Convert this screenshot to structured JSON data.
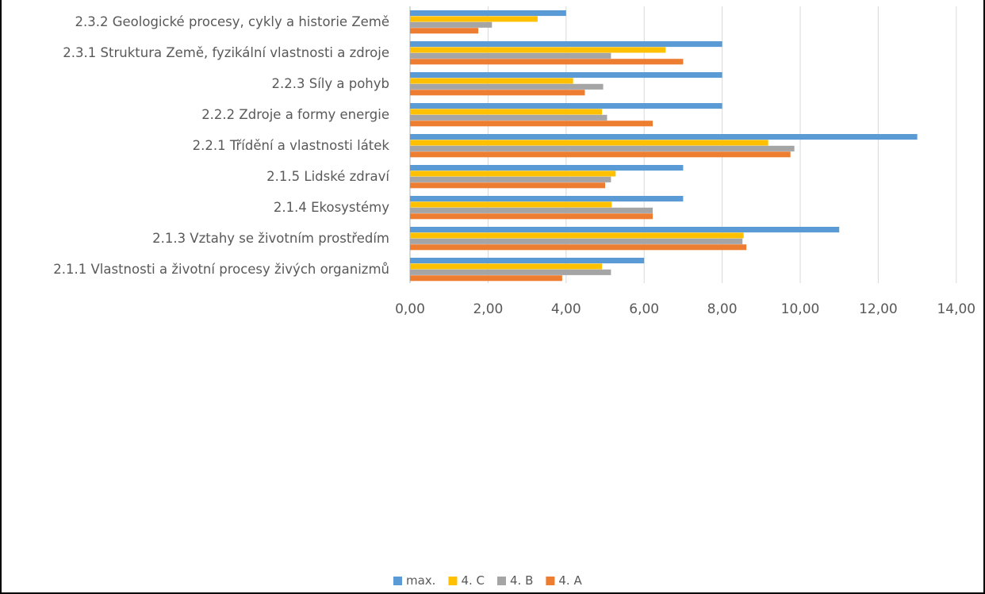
{
  "chart_data": {
    "type": "bar",
    "orientation": "horizontal",
    "categories": [
      "2.1.1 Vlastnosti a životní procesy živých organizmů",
      "2.1.3 Vztahy se životním prostředím",
      "2.1.4 Ekosystémy",
      "2.1.5 Lidské zdraví",
      "2.2.1 Třídění a vlastnosti látek",
      "2.2.2 Zdroje a formy energie",
      "2.2.3 Síly a pohyb",
      "2.3.1 Struktura Země, fyzikální vlastnosti a zdroje",
      "2.3.2 Geologické procesy, cykly a historie Země"
    ],
    "series": [
      {
        "name": "max.",
        "color": "#5B9BD5",
        "values": [
          6,
          11,
          7,
          7,
          13,
          8,
          8,
          8,
          4
        ]
      },
      {
        "name": "4. C",
        "color": "#FFC000",
        "values": [
          4.92,
          8.55,
          5.17,
          5.27,
          9.18,
          4.92,
          4.18,
          6.55,
          3.27
        ]
      },
      {
        "name": "4. B",
        "color": "#A5A5A5",
        "values": [
          5.15,
          8.52,
          6.22,
          5.15,
          9.85,
          5.05,
          4.95,
          5.15,
          2.1
        ]
      },
      {
        "name": "4. A",
        "color": "#ED7D31",
        "values": [
          3.9,
          8.62,
          6.22,
          5.0,
          9.75,
          6.22,
          4.48,
          7.0,
          1.75
        ]
      }
    ],
    "title": "",
    "xlabel": "",
    "ylabel": "",
    "xlim": [
      0,
      14
    ],
    "xticks": [
      0,
      2,
      4,
      6,
      8,
      10,
      12,
      14
    ],
    "xtick_labels": [
      "0,00",
      "2,00",
      "4,00",
      "6,00",
      "8,00",
      "10,00",
      "12,00",
      "14,00"
    ],
    "grid": "vertical",
    "legend_position": "bottom",
    "legend_order": [
      "max.",
      "4. C",
      "4. B",
      "4. A"
    ]
  }
}
